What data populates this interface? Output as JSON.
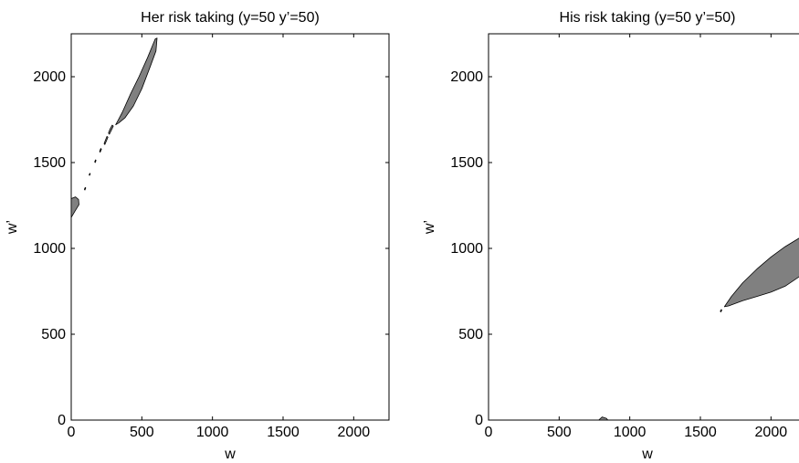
{
  "chart_data": [
    {
      "type": "contour",
      "title": "Her risk taking (y=50 y’=50)",
      "xlabel": "w",
      "ylabel": "w’",
      "xlim": [
        0,
        2250
      ],
      "ylim": [
        0,
        2250
      ],
      "xticks": [
        0,
        500,
        1000,
        1500,
        2000
      ],
      "yticks": [
        0,
        500,
        1000,
        1500,
        2000
      ],
      "legend": "none",
      "grid": false,
      "fill_color": "#808080",
      "regions": [
        {
          "name": "upper-band",
          "points": [
            [
              315,
              1720
            ],
            [
              360,
              1790
            ],
            [
              420,
              1900
            ],
            [
              480,
              2000
            ],
            [
              540,
              2110
            ],
            [
              595,
              2220
            ],
            [
              608,
              2225
            ],
            [
              600,
              2150
            ],
            [
              560,
              2060
            ],
            [
              500,
              1930
            ],
            [
              440,
              1830
            ],
            [
              380,
              1760
            ],
            [
              335,
              1730
            ]
          ]
        },
        {
          "name": "left-blob",
          "points": [
            [
              0,
              1180
            ],
            [
              25,
              1215
            ],
            [
              55,
              1255
            ],
            [
              52,
              1285
            ],
            [
              30,
              1300
            ],
            [
              0,
              1290
            ]
          ]
        },
        {
          "name": "fleck-1",
          "points": [
            [
              270,
              1665
            ],
            [
              285,
              1690
            ],
            [
              298,
              1712
            ],
            [
              290,
              1718
            ],
            [
              275,
              1695
            ],
            [
              264,
              1672
            ]
          ]
        },
        {
          "name": "fleck-2",
          "points": [
            [
              238,
              1605
            ],
            [
              250,
              1628
            ],
            [
              260,
              1648
            ],
            [
              253,
              1652
            ],
            [
              242,
              1630
            ],
            [
              233,
              1610
            ]
          ]
        },
        {
          "name": "fleck-3",
          "points": [
            [
              205,
              1560
            ],
            [
              214,
              1578
            ],
            [
              209,
              1582
            ],
            [
              201,
              1565
            ]
          ]
        },
        {
          "name": "fleck-4",
          "points": [
            [
              170,
              1500
            ],
            [
              176,
              1513
            ],
            [
              172,
              1516
            ],
            [
              166,
              1504
            ]
          ]
        },
        {
          "name": "fleck-5",
          "points": [
            [
              130,
              1425
            ],
            [
              135,
              1435
            ],
            [
              131,
              1437
            ],
            [
              127,
              1428
            ]
          ]
        },
        {
          "name": "fleck-6",
          "points": [
            [
              97,
              1340
            ],
            [
              103,
              1352
            ],
            [
              99,
              1355
            ],
            [
              93,
              1344
            ]
          ]
        }
      ]
    },
    {
      "type": "contour",
      "title": "His risk taking (y=50 y’=50)",
      "xlabel": "w",
      "ylabel": "w’",
      "xlim": [
        0,
        2250
      ],
      "ylim": [
        0,
        2250
      ],
      "xticks": [
        0,
        500,
        1000,
        1500,
        2000
      ],
      "yticks": [
        0,
        500,
        1000,
        1500,
        2000
      ],
      "legend": "none",
      "grid": false,
      "fill_color": "#808080",
      "regions": [
        {
          "name": "band",
          "points": [
            [
              1670,
              660
            ],
            [
              1720,
              720
            ],
            [
              1800,
              800
            ],
            [
              1900,
              880
            ],
            [
              2000,
              950
            ],
            [
              2100,
              1010
            ],
            [
              2200,
              1060
            ],
            [
              2250,
              1090
            ],
            [
              2250,
              890
            ],
            [
              2200,
              835
            ],
            [
              2100,
              780
            ],
            [
              2000,
              745
            ],
            [
              1900,
              720
            ],
            [
              1800,
              695
            ],
            [
              1700,
              665
            ]
          ]
        },
        {
          "name": "dot-1",
          "points": [
            [
              1645,
              630
            ],
            [
              1652,
              640
            ],
            [
              1648,
              644
            ],
            [
              1641,
              634
            ]
          ]
        },
        {
          "name": "dot-2",
          "points": [
            [
              780,
              0
            ],
            [
              805,
              18
            ],
            [
              835,
              10
            ],
            [
              845,
              0
            ]
          ]
        }
      ]
    }
  ]
}
